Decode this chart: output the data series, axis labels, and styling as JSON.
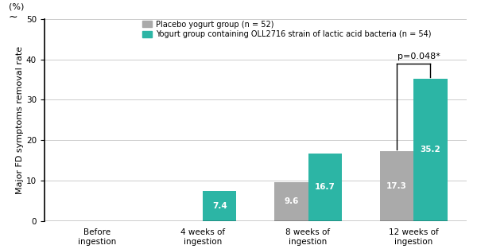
{
  "categories": [
    "Before\ningestion",
    "4 weeks of\ningestion",
    "8 weeks of\ningestion",
    "12 weeks of\ningestion"
  ],
  "placebo_values": [
    0,
    0,
    9.6,
    17.3
  ],
  "yogurt_values": [
    0,
    7.4,
    16.7,
    35.2
  ],
  "placebo_color": "#aaaaaa",
  "yogurt_color": "#2cb5a5",
  "ylabel": "Major FD symptoms removal rate",
  "ylabel_unit": "(%)",
  "ylim": [
    0,
    50
  ],
  "yticks": [
    0,
    10,
    20,
    30,
    40,
    50
  ],
  "legend_placebo": "Placebo yogurt group (n = 52)",
  "legend_yogurt": "Yogurt group containing OLL2716 strain of lactic acid bacteria (n = 54)",
  "pvalue_text": "p=0.048*",
  "bar_width": 0.32,
  "background_color": "#ffffff",
  "figsize": [
    6.0,
    3.13
  ],
  "dpi": 100
}
